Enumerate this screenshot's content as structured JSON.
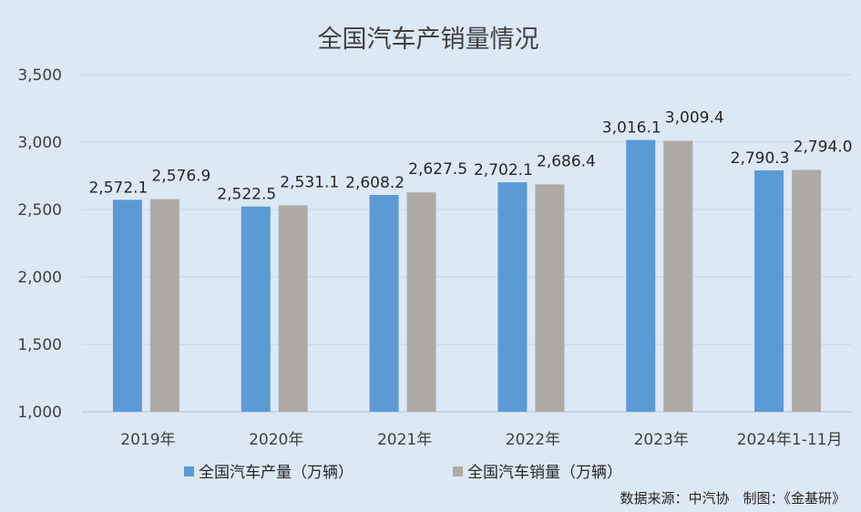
{
  "chart_data": {
    "type": "bar",
    "title": "全国汽车产销量情况",
    "categories": [
      "2019年",
      "2020年",
      "2021年",
      "2022年",
      "2023年",
      "2024年1-11月"
    ],
    "series": [
      {
        "name": "全国汽车产量（万辆）",
        "values": [
          2572.1,
          2522.5,
          2608.2,
          2702.1,
          3016.1,
          2790.3
        ],
        "labels": [
          "2,572.1",
          "2,522.5",
          "2,608.2",
          "2,702.1",
          "3,016.1",
          "2,790.3"
        ],
        "color": "#5b9bd5"
      },
      {
        "name": "全国汽车销量（万辆）",
        "values": [
          2576.9,
          2531.1,
          2627.5,
          2686.4,
          3009.4,
          2794.0
        ],
        "labels": [
          "2,576.9",
          "2,531.1",
          "2,627.5",
          "2,686.4",
          "3,009.4",
          "2,794.0"
        ],
        "color": "#aeaaa7"
      }
    ],
    "ylim": [
      1000,
      3500
    ],
    "yticks": [
      1000,
      1500,
      2000,
      2500,
      3000,
      3500
    ],
    "ytick_labels": [
      "1,000",
      "1,500",
      "2,000",
      "2,500",
      "3,000",
      "3,500"
    ],
    "grid": true,
    "legend_position": "bottom",
    "xlabel": "",
    "ylabel": ""
  },
  "source_note": "数据来源：中汽协　制图：《金基研》"
}
